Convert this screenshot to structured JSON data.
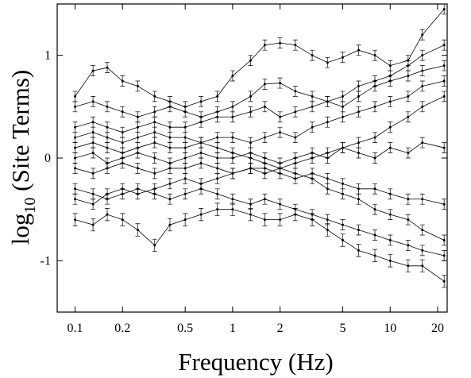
{
  "chart_data": {
    "type": "line",
    "xlabel": "Frequency (Hz)",
    "ylabel": {
      "main": "log",
      "sub": "10",
      "rest": " (Site Terms)"
    },
    "xscale": "log",
    "xlim": [
      0.077,
      23
    ],
    "ylim": [
      -1.5,
      1.5
    ],
    "xticks": [
      0.1,
      0.2,
      0.5,
      1,
      2,
      5,
      10,
      20
    ],
    "yticks": [
      -1,
      0,
      1
    ],
    "x": [
      0.1,
      0.13,
      0.16,
      0.2,
      0.25,
      0.32,
      0.4,
      0.5,
      0.63,
      0.8,
      1,
      1.3,
      1.6,
      2,
      2.5,
      3.2,
      4,
      5,
      6.3,
      8,
      10,
      13,
      16,
      22
    ],
    "series": [
      {
        "color": "#000000",
        "error": 0.05,
        "values": [
          0.6,
          0.85,
          0.88,
          0.75,
          0.7,
          0.6,
          0.55,
          0.5,
          0.55,
          0.6,
          0.8,
          0.95,
          1.1,
          1.12,
          1.1,
          1.0,
          0.93,
          0.98,
          1.05,
          1.0,
          0.9,
          0.95,
          1.2,
          1.45
        ]
      },
      {
        "color": "#000000",
        "error": 0.05,
        "values": [
          0.3,
          0.35,
          0.3,
          0.25,
          0.3,
          0.35,
          0.3,
          0.3,
          0.35,
          0.4,
          0.4,
          0.45,
          0.5,
          0.4,
          0.45,
          0.5,
          0.55,
          0.6,
          0.7,
          0.75,
          0.8,
          0.9,
          1.0,
          1.1
        ]
      },
      {
        "color": "#000000",
        "error": 0.05,
        "values": [
          0.1,
          0.15,
          0.1,
          0.05,
          0.1,
          0.15,
          0.1,
          0.1,
          0.15,
          0.2,
          0.2,
          0.15,
          0.2,
          0.25,
          0.2,
          0.3,
          0.35,
          0.4,
          0.45,
          0.5,
          0.55,
          0.6,
          0.7,
          0.75
        ]
      },
      {
        "color": "#000000",
        "error": 0.05,
        "values": [
          0,
          0.05,
          -0.05,
          0,
          0.05,
          0,
          -0.05,
          0,
          0.05,
          0,
          0,
          0.05,
          0,
          -0.05,
          0,
          0.05,
          0,
          0.1,
          0.05,
          0,
          0.1,
          0.05,
          0.15,
          0.1
        ]
      },
      {
        "color": "#000000",
        "error": 0.05,
        "values": [
          -0.1,
          -0.15,
          -0.1,
          -0.05,
          -0.1,
          -0.15,
          -0.1,
          -0.1,
          -0.05,
          -0.1,
          -0.15,
          -0.1,
          -0.1,
          -0.15,
          -0.2,
          -0.15,
          -0.2,
          -0.25,
          -0.3,
          -0.3,
          -0.35,
          -0.4,
          -0.4,
          -0.45
        ]
      },
      {
        "color": "#000000",
        "error": 0.05,
        "values": [
          -0.3,
          -0.35,
          -0.4,
          -0.35,
          -0.3,
          -0.35,
          -0.4,
          -0.35,
          -0.3,
          -0.35,
          -0.4,
          -0.45,
          -0.4,
          -0.45,
          -0.5,
          -0.55,
          -0.6,
          -0.65,
          -0.7,
          -0.75,
          -0.8,
          -0.85,
          -0.9,
          -0.95
        ]
      },
      {
        "color": "#000000",
        "error": 0.06,
        "values": [
          -0.6,
          -0.65,
          -0.55,
          -0.6,
          -0.7,
          -0.85,
          -0.65,
          -0.6,
          -0.55,
          -0.5,
          -0.5,
          -0.55,
          -0.6,
          -0.6,
          -0.55,
          -0.6,
          -0.7,
          -0.8,
          -0.9,
          -0.95,
          -1.0,
          -1.05,
          -1.05,
          -1.2
        ]
      },
      {
        "color": "#000000",
        "error": 0.05,
        "values": [
          0.5,
          0.55,
          0.5,
          0.45,
          0.4,
          0.45,
          0.5,
          0.45,
          0.4,
          0.45,
          0.5,
          0.6,
          0.72,
          0.73,
          0.65,
          0.6,
          0.55,
          0.5,
          0.6,
          0.7,
          0.75,
          0.8,
          0.85,
          0.9
        ]
      },
      {
        "color": "#000000",
        "error": 0.05,
        "values": [
          0.2,
          0.25,
          0.2,
          0.15,
          0.2,
          0.25,
          0.2,
          0.2,
          0.15,
          0.1,
          0.05,
          0,
          -0.05,
          -0.1,
          -0.15,
          -0.2,
          -0.3,
          -0.35,
          -0.4,
          -0.5,
          -0.55,
          -0.6,
          -0.7,
          -0.8
        ]
      },
      {
        "color": "#000000",
        "error": 0.05,
        "values": [
          -0.4,
          -0.45,
          -0.35,
          -0.3,
          -0.35,
          -0.3,
          -0.25,
          -0.2,
          -0.25,
          -0.2,
          -0.15,
          -0.1,
          -0.15,
          -0.1,
          -0.05,
          0,
          0.05,
          0.1,
          0.15,
          0.2,
          0.3,
          0.4,
          0.5,
          0.6
        ]
      }
    ]
  }
}
